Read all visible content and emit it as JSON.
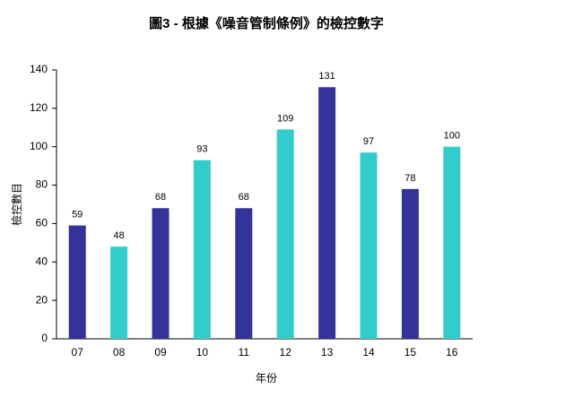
{
  "chart_data": {
    "type": "bar",
    "title": "圖3 - 根據《噪音管制條例》的檢控數字",
    "x_label": "年份",
    "y_label": "檢控數目",
    "categories": [
      "07",
      "08",
      "09",
      "10",
      "11",
      "12",
      "13",
      "14",
      "15",
      "16"
    ],
    "values": [
      59,
      48,
      68,
      93,
      68,
      109,
      131,
      97,
      78,
      100
    ],
    "colors": [
      "#333399",
      "#33cccc",
      "#333399",
      "#33cccc",
      "#333399",
      "#33cccc",
      "#333399",
      "#33cccc",
      "#333399",
      "#33cccc"
    ],
    "ylim": [
      0,
      140
    ],
    "yticks": [
      0,
      20,
      40,
      60,
      80,
      100,
      120,
      140
    ],
    "grid": false
  }
}
